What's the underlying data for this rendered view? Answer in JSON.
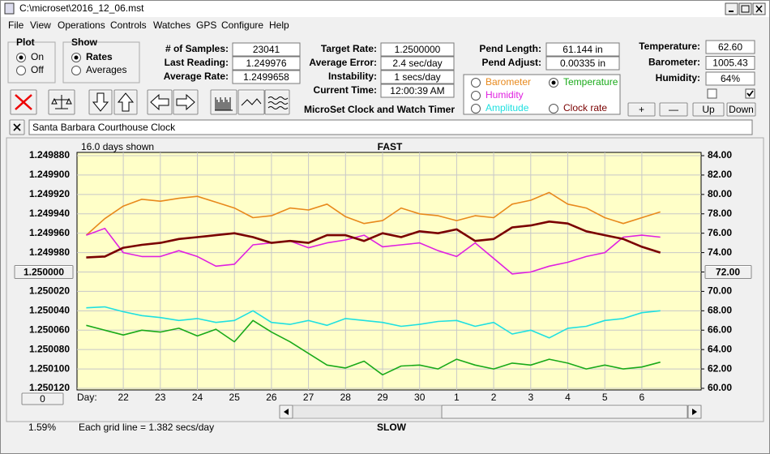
{
  "window": {
    "title": "C:\\microset\\2016_12_06.mst"
  },
  "menu": [
    "File",
    "View",
    "Operations",
    "Controls",
    "Watches",
    "GPS",
    "Configure",
    "Help"
  ],
  "plot_group": {
    "title": "Plot",
    "options": [
      "On",
      "Off"
    ],
    "selected": 0
  },
  "show_group": {
    "title": "Show",
    "options": [
      "Rates",
      "Averages"
    ],
    "selected": 0
  },
  "fields": [
    [
      {
        "label": "# of Samples:",
        "value": "23041"
      },
      {
        "label": "Last Reading:",
        "value": "1.249976"
      },
      {
        "label": "Average Rate:",
        "value": "1.2499658"
      }
    ],
    [
      {
        "label": "Target Rate:",
        "value": "1.2500000"
      },
      {
        "label": "Average Error:",
        "value": "2.4 sec/day"
      },
      {
        "label": "Instability:",
        "value": "1 secs/day"
      },
      {
        "label": "Current Time:",
        "value": "12:00:39 AM"
      }
    ],
    [
      {
        "label": "Pend Length:",
        "value": "61.144 in"
      },
      {
        "label": "Pend Adjust:",
        "value": "0.00335 in"
      }
    ],
    [
      {
        "label": "Temperature:",
        "value": "62.60"
      },
      {
        "label": "Barometer:",
        "value": "1005.43"
      },
      {
        "label": "Humidity:",
        "value": "64%"
      }
    ]
  ],
  "caption": "MicroSet Clock and Watch Timer",
  "buttons": [
    "+",
    "—",
    "Up",
    "Down"
  ],
  "checkboxes": [
    false,
    true
  ],
  "note": "Santa Barbara Courthouse Clock",
  "chart_data": {
    "type": "line",
    "title": "FAST",
    "bottom_label": "SLOW",
    "days_shown": "16.0 days shown",
    "grid_note": "Each grid line = 1.382 secs/day",
    "percent": "1.59%",
    "x_label": "Day:",
    "zero_button": "0",
    "selected_series": 1,
    "grid": true,
    "xlim": [
      -1.25,
      15.6
    ],
    "xticks": [
      {
        "value": 0,
        "label": "22"
      },
      {
        "value": 1,
        "label": "23"
      },
      {
        "value": 2,
        "label": "24"
      },
      {
        "value": 3,
        "label": "25"
      },
      {
        "value": 4,
        "label": "26"
      },
      {
        "value": 5,
        "label": "27"
      },
      {
        "value": 6,
        "label": "28"
      },
      {
        "value": 7,
        "label": "29"
      },
      {
        "value": 8,
        "label": "30"
      },
      {
        "value": 9,
        "label": "1"
      },
      {
        "value": 10,
        "label": "2"
      },
      {
        "value": 11,
        "label": "3"
      },
      {
        "value": 12,
        "label": "4"
      },
      {
        "value": 13,
        "label": "5"
      },
      {
        "value": 14,
        "label": "6"
      }
    ],
    "ylim": [
      1.25012,
      1.24988
    ],
    "yticks": [
      {
        "value": 1.24988,
        "label": "1.249880"
      },
      {
        "value": 1.2499,
        "label": "1.249900"
      },
      {
        "value": 1.24992,
        "label": "1.249920"
      },
      {
        "value": 1.24994,
        "label": "1.249940"
      },
      {
        "value": 1.24996,
        "label": "1.249960"
      },
      {
        "value": 1.24998,
        "label": "1.249980"
      },
      {
        "value": 1.25,
        "label": "1.250000"
      },
      {
        "value": 1.25002,
        "label": "1.250020"
      },
      {
        "value": 1.25004,
        "label": "1.250040"
      },
      {
        "value": 1.25006,
        "label": "1.250060"
      },
      {
        "value": 1.25008,
        "label": "1.250080"
      },
      {
        "value": 1.2501,
        "label": "1.250100"
      },
      {
        "value": 1.25012,
        "label": "1.250120"
      }
    ],
    "y2lim": [
      60,
      84
    ],
    "y2ticks": [
      {
        "value": 84,
        "label": "84.00"
      },
      {
        "value": 82,
        "label": "82.00"
      },
      {
        "value": 80,
        "label": "80.00"
      },
      {
        "value": 78,
        "label": "78.00"
      },
      {
        "value": 76,
        "label": "76.00"
      },
      {
        "value": 74,
        "label": "74.00"
      },
      {
        "value": 72,
        "label": "72.00"
      },
      {
        "value": 70,
        "label": "70.00"
      },
      {
        "value": 68,
        "label": "68.00"
      },
      {
        "value": 66,
        "label": "66.00"
      },
      {
        "value": 64,
        "label": "64.00"
      },
      {
        "value": 62,
        "label": "62.00"
      },
      {
        "value": 60,
        "label": "60.00"
      }
    ],
    "x": [
      -1,
      -0.5,
      0,
      0.5,
      1,
      1.5,
      2,
      2.5,
      3,
      3.5,
      4,
      4.5,
      5,
      5.5,
      6,
      6.5,
      7,
      7.5,
      8,
      8.5,
      9,
      9.5,
      10,
      10.5,
      11,
      11.5,
      12,
      12.5,
      13,
      13.5,
      14,
      14.5
    ],
    "series": [
      {
        "name": "Barometer",
        "color": "#e8891c",
        "axis": "y2",
        "values": [
          75.8,
          77.5,
          78.8,
          79.5,
          79.3,
          79.6,
          79.8,
          79.2,
          78.6,
          77.6,
          77.8,
          78.6,
          78.4,
          79.0,
          77.7,
          77.0,
          77.3,
          78.6,
          78.0,
          77.8,
          77.3,
          77.8,
          77.6,
          79.0,
          79.4,
          80.2,
          79.0,
          78.6,
          77.6,
          77.0,
          77.6,
          78.2
        ]
      },
      {
        "name": "Temperature",
        "color": "#1aaa1a",
        "axis": "y2",
        "values": [
          66.5,
          66.0,
          65.5,
          66.0,
          65.8,
          66.2,
          65.4,
          66.1,
          64.8,
          67.0,
          65.8,
          64.8,
          63.6,
          62.4,
          62.1,
          62.8,
          61.4,
          62.3,
          62.4,
          62.0,
          63.0,
          62.4,
          62.0,
          62.6,
          62.4,
          63.0,
          62.6,
          62.0,
          62.4,
          62.0,
          62.2,
          62.7
        ]
      },
      {
        "name": "Humidity",
        "color": "#e020e0",
        "axis": "y2",
        "values": [
          75.8,
          76.5,
          74.0,
          73.6,
          73.6,
          74.2,
          73.6,
          72.6,
          72.8,
          74.8,
          75.0,
          75.2,
          74.5,
          75.0,
          75.3,
          75.8,
          74.6,
          74.8,
          75.0,
          74.2,
          73.6,
          75.0,
          73.4,
          71.8,
          72.0,
          72.6,
          73.0,
          73.6,
          74.0,
          75.6,
          75.8,
          75.6
        ]
      },
      {
        "name": "Amplitude",
        "color": "#20e0e0",
        "axis": "y2",
        "values": [
          68.3,
          68.4,
          67.9,
          67.5,
          67.3,
          67.0,
          67.2,
          66.8,
          67.0,
          68.0,
          66.8,
          66.6,
          67.0,
          66.5,
          67.2,
          67.0,
          66.8,
          66.4,
          66.6,
          66.9,
          67.0,
          66.4,
          66.8,
          65.6,
          66.0,
          65.2,
          66.2,
          66.4,
          67.0,
          67.2,
          67.8,
          68.0
        ]
      },
      {
        "name": "Clock rate",
        "color": "#7a0000",
        "values": [
          1.249985,
          1.249984,
          1.249975,
          1.249972,
          1.24997,
          1.249966,
          1.249964,
          1.249962,
          1.24996,
          1.249964,
          1.24997,
          1.249968,
          1.24997,
          1.249962,
          1.249962,
          1.249968,
          1.24996,
          1.249964,
          1.249958,
          1.24996,
          1.249956,
          1.249968,
          1.249966,
          1.249954,
          1.249952,
          1.249948,
          1.24995,
          1.249958,
          1.249962,
          1.249966,
          1.249974,
          1.24998
        ]
      }
    ]
  }
}
